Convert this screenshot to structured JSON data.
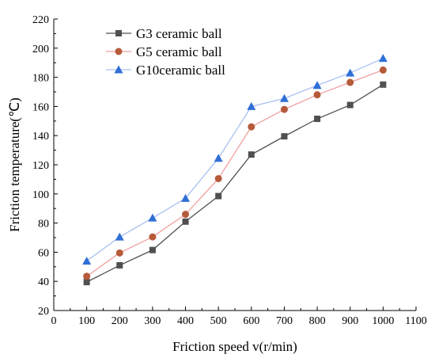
{
  "chart_data": {
    "type": "line",
    "title": "",
    "xlabel": "Friction speed v(r/min)",
    "ylabel": "Friction temperature(℃)",
    "xlim": [
      0,
      1100
    ],
    "ylim": [
      20,
      220
    ],
    "xticks": [
      0,
      100,
      200,
      300,
      400,
      500,
      600,
      700,
      800,
      900,
      1000,
      1100
    ],
    "yticks": [
      20,
      40,
      60,
      80,
      100,
      120,
      140,
      160,
      180,
      200,
      220
    ],
    "grid": false,
    "legend_position": "top-left",
    "x": [
      100,
      200,
      300,
      400,
      500,
      600,
      700,
      800,
      900,
      1000
    ],
    "series": [
      {
        "name": "G3 ceramic ball",
        "color": "#505050",
        "marker": "square",
        "values": [
          39.5,
          51,
          61.5,
          81,
          98.5,
          127,
          139.5,
          151.5,
          161,
          175
        ]
      },
      {
        "name": "G5 ceramic ball",
        "color": "#b75a3a",
        "line_color": "#f0a0a0",
        "marker": "circle",
        "values": [
          43.5,
          59.5,
          70.5,
          86,
          110.5,
          146,
          158,
          168,
          176.5,
          185
        ]
      },
      {
        "name": "G10ceramic ball",
        "color": "#2f6fd6",
        "line_color": "#a8c0f0",
        "marker": "triangle",
        "values": [
          54,
          70.5,
          83.5,
          97,
          124.5,
          160,
          165.5,
          174.5,
          183,
          193
        ]
      }
    ]
  }
}
